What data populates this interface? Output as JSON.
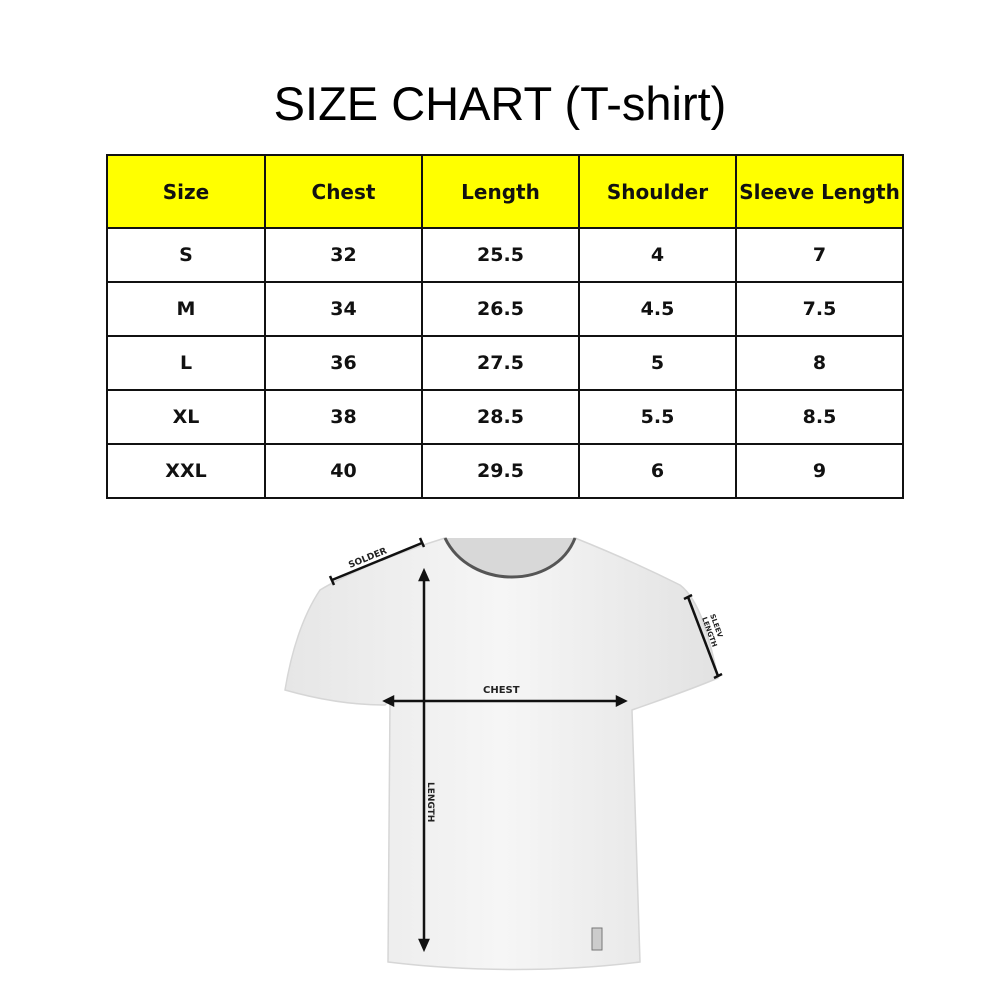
{
  "title": "SIZE CHART (T-shirt)",
  "table": {
    "header_color": "#ffff00",
    "columns": [
      "Size",
      "Chest",
      "Length",
      "Shoulder",
      "Sleeve Length"
    ],
    "rows": [
      [
        "S",
        "32",
        "25.5",
        "4",
        "7"
      ],
      [
        "M",
        "34",
        "26.5",
        "4.5",
        "7.5"
      ],
      [
        "L",
        "36",
        "27.5",
        "5",
        "8"
      ],
      [
        "XL",
        "38",
        "28.5",
        "5.5",
        "8.5"
      ],
      [
        "XXL",
        "40",
        "29.5",
        "6",
        "9"
      ]
    ]
  },
  "diagram": {
    "labels": {
      "shoulder": "SOLDER",
      "sleeve_1": "SLEEV",
      "sleeve_2": "LENGTH",
      "chest": "CHEST",
      "length": "LENGTH"
    }
  }
}
